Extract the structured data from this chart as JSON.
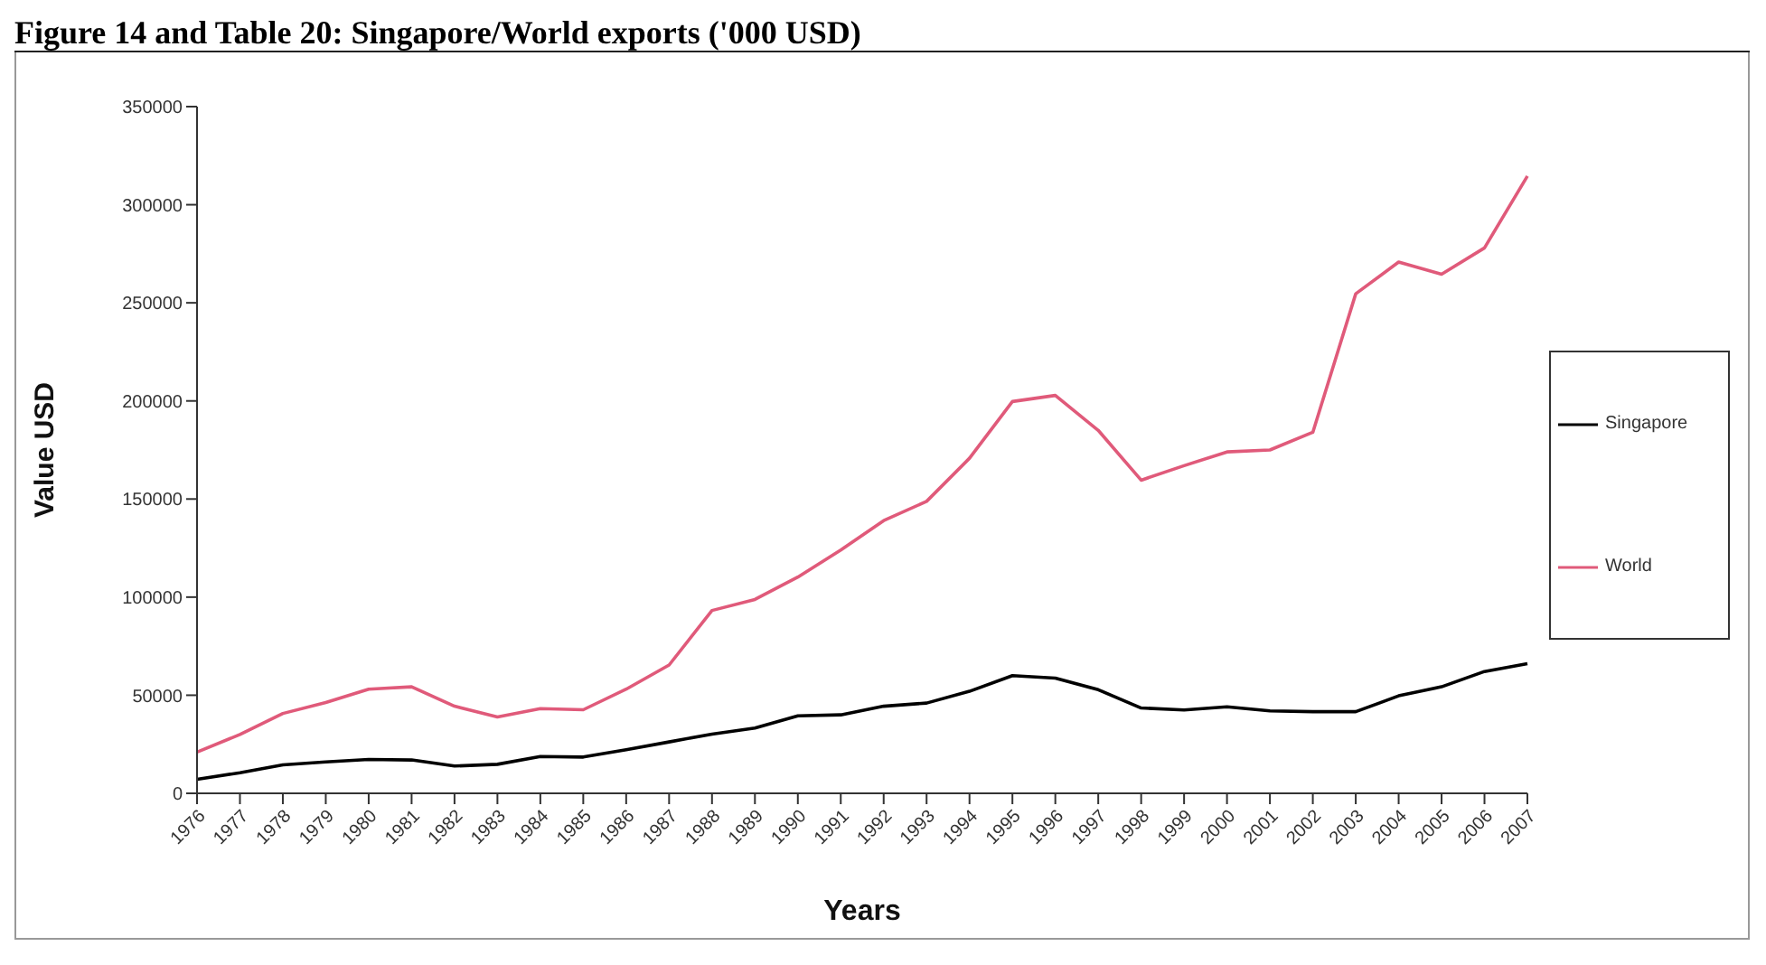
{
  "chart_data": {
    "type": "line",
    "title": "Figure 14 and Table 20: Singapore/World exports ('000 USD)",
    "xlabel": "Years",
    "ylabel": "Value USD",
    "categories": [
      "1976",
      "1977",
      "1978",
      "1979",
      "1980",
      "1981",
      "1982",
      "1983",
      "1984",
      "1985",
      "1986",
      "1987",
      "1988",
      "1989",
      "1990",
      "1991",
      "1992",
      "1993",
      "1994",
      "1995",
      "1996",
      "1997",
      "1998",
      "1999",
      "2000",
      "2001",
      "2002",
      "2003",
      "2004",
      "2005",
      "2006",
      "2007"
    ],
    "series": [
      {
        "name": "Singapore",
        "color": "#000000",
        "values": [
          7100,
          10500,
          14500,
          16000,
          17300,
          17000,
          13900,
          14800,
          18800,
          18500,
          22200,
          26200,
          30200,
          33300,
          39500,
          40000,
          44400,
          46000,
          52000,
          60000,
          58700,
          52800,
          43500,
          42500,
          44100,
          42000,
          41600,
          41600,
          49700,
          54300,
          62100,
          66100
        ]
      },
      {
        "name": "World",
        "color": "#e05a7a",
        "values": [
          21000,
          30000,
          40700,
          46300,
          53100,
          54300,
          44400,
          38900,
          43200,
          42600,
          53100,
          65400,
          93200,
          98800,
          110200,
          124000,
          139000,
          148800,
          170800,
          199700,
          202800,
          185000,
          159600,
          167000,
          174000,
          175000,
          184000,
          254600,
          270800,
          264600,
          278000,
          314600
        ]
      }
    ],
    "ylim": [
      0,
      350000
    ],
    "yticks": [
      0,
      50000,
      100000,
      150000,
      200000,
      250000,
      300000,
      350000
    ],
    "grid": false,
    "legend": "right",
    "marker": "none",
    "line_style": "solid"
  }
}
